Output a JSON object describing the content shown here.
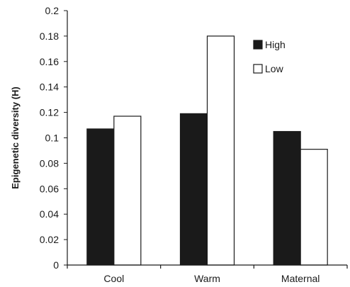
{
  "chart_data": {
    "type": "bar",
    "title": "",
    "xlabel": "",
    "ylabel": "Epigenetic diversity (H)",
    "categories": [
      "Cool",
      "Warm",
      "Maternal"
    ],
    "series": [
      {
        "name": "High",
        "values": [
          0.107,
          0.119,
          0.105
        ],
        "color": "#1a1a1a"
      },
      {
        "name": "Low",
        "values": [
          0.117,
          0.18,
          0.091
        ],
        "color": "#ffffff"
      }
    ],
    "ylim": [
      0,
      0.2
    ],
    "yticks": [
      "0",
      "0.02",
      "0.04",
      "0.06",
      "0.08",
      "0.1",
      "0.12",
      "0.14",
      "0.16",
      "0.18",
      "0.2"
    ],
    "grid": false,
    "legend_position": "top-right",
    "colors": {
      "axis": "#1a1a1a",
      "bar_stroke": "#1a1a1a"
    }
  }
}
